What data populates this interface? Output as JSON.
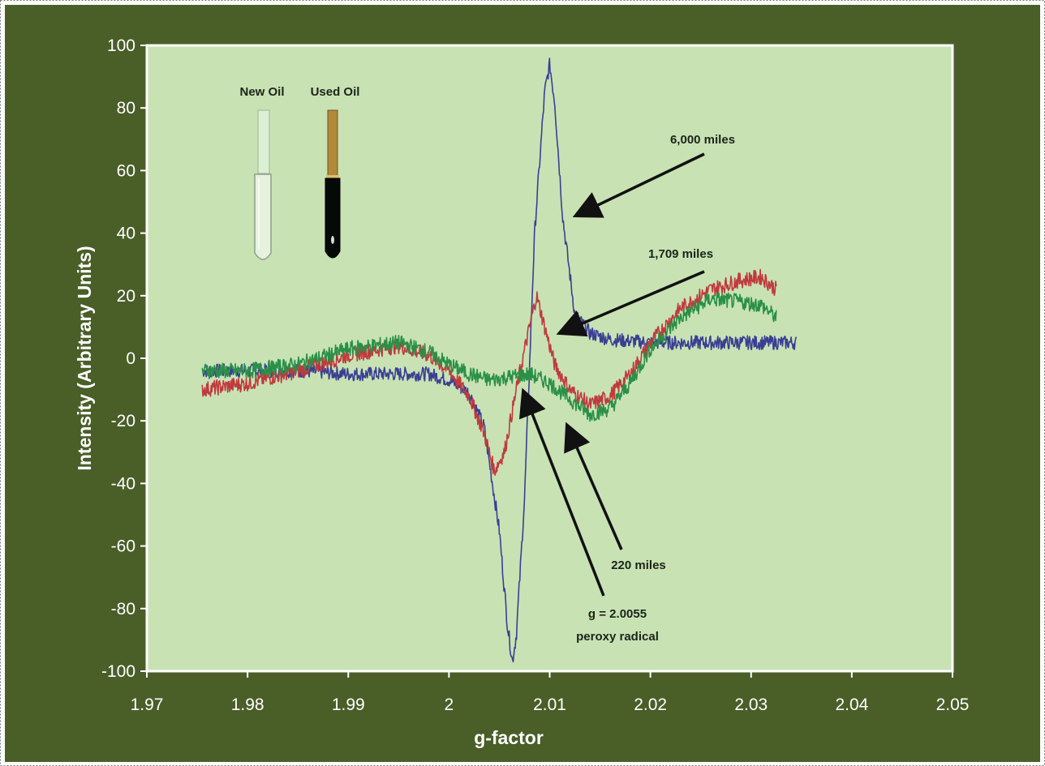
{
  "chart_data": {
    "type": "line",
    "title": "",
    "xlabel": "g-factor",
    "ylabel": "Intensity (Arbitrary Units)",
    "xlim": [
      1.97,
      2.05
    ],
    "ylim": [
      -100,
      100
    ],
    "x_ticks": [
      1.97,
      1.98,
      1.99,
      2.0,
      2.01,
      2.02,
      2.03,
      2.04,
      2.05
    ],
    "x_tick_labels": [
      "1.97",
      "1.98",
      "1.99",
      "2",
      "2.01",
      "2.02",
      "2.03",
      "2.04",
      "2.05"
    ],
    "y_ticks": [
      100,
      80,
      60,
      40,
      20,
      0,
      -20,
      -40,
      -60,
      -80,
      -100
    ],
    "y_tick_labels": [
      "100",
      "80",
      "60",
      "40",
      "20",
      "0",
      "-20",
      "-40",
      "-60",
      "-80",
      "-100"
    ],
    "grid": false,
    "colors": {
      "background": "#4a5e28",
      "plot_area": "#c8e2b4",
      "axis": "#ffffff",
      "text_light": "#ffffff",
      "text_dark": "#1c2418"
    },
    "series": [
      {
        "color": "#3b3f92",
        "x": [
          1.9755,
          1.98,
          1.985,
          1.99,
          1.995,
          1.998,
          2.0,
          2.002,
          2.0035,
          2.005,
          2.0058,
          2.0063,
          2.0067,
          2.0075,
          2.0085,
          2.0095,
          2.01,
          2.0105,
          2.0113,
          2.0125,
          2.014,
          2.016,
          2.02,
          2.025,
          2.03,
          2.0345
        ],
        "y": [
          -4,
          -4,
          -4,
          -5,
          -5,
          -5,
          -7,
          -11,
          -22,
          -55,
          -85,
          -97,
          -88,
          -45,
          40,
          85,
          94,
          82,
          45,
          14,
          8,
          6,
          5,
          5,
          5,
          5
        ]
      },
      {
        "color": "#c03a3c",
        "x": [
          1.9755,
          1.98,
          1.985,
          1.99,
          1.995,
          1.998,
          2.0,
          2.002,
          2.0035,
          2.0045,
          2.0055,
          2.007,
          2.008,
          2.0087,
          2.0095,
          2.0105,
          2.012,
          2.014,
          2.016,
          2.018,
          2.02,
          2.023,
          2.026,
          2.029,
          2.031,
          2.0325
        ],
        "y": [
          -10,
          -8,
          -4,
          1,
          4,
          1,
          -4,
          -12,
          -24,
          -36,
          -30,
          -5,
          10,
          20,
          10,
          -2,
          -10,
          -15,
          -12,
          -5,
          5,
          16,
          22,
          25,
          26,
          22
        ]
      },
      {
        "color": "#2a9048",
        "x": [
          1.9755,
          1.98,
          1.985,
          1.99,
          1.995,
          1.998,
          2.0,
          2.002,
          2.004,
          2.006,
          2.008,
          2.01,
          2.012,
          2.014,
          2.016,
          2.018,
          2.02,
          2.023,
          2.026,
          2.029,
          2.031,
          2.0325
        ],
        "y": [
          -4,
          -4,
          -2,
          3,
          5,
          2,
          -2,
          -5,
          -7,
          -6,
          -5,
          -8,
          -13,
          -18,
          -16,
          -8,
          3,
          13,
          19,
          18,
          17,
          13
        ]
      }
    ],
    "annotations": [
      {
        "text": "6,000 miles",
        "at": [
          2.0112,
          44
        ]
      },
      {
        "text": "1,709 miles",
        "at": [
          2.0105,
          9
        ]
      },
      {
        "text": "220 miles",
        "at": [
          2.0114,
          -20
        ]
      },
      {
        "lines": [
          "g = 2.0055",
          "peroxy radical"
        ],
        "at": [
          2.0068,
          -8
        ]
      }
    ],
    "inset": {
      "new_oil_label": "New Oil",
      "used_oil_label": "Used Oil"
    }
  }
}
